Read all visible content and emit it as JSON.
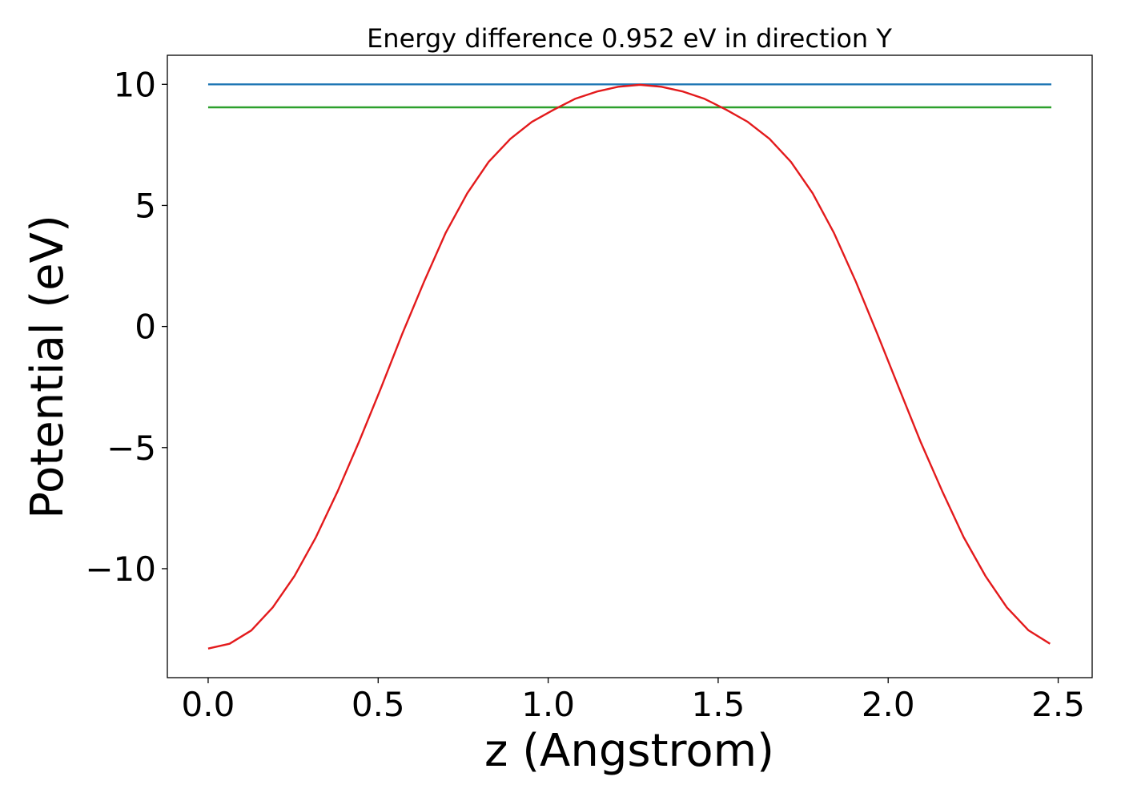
{
  "chart_data": {
    "type": "line",
    "title": "Energy difference 0.952 eV in direction Y",
    "xlabel": "z (Angstrom)",
    "ylabel": "Potential (eV)",
    "xlim": [
      -0.12,
      2.6
    ],
    "ylim": [
      -14.5,
      11.2
    ],
    "xticks": [
      0.0,
      0.5,
      1.0,
      1.5,
      2.0,
      2.5
    ],
    "xtick_labels": [
      "0.0",
      "0.5",
      "1.0",
      "1.5",
      "2.0",
      "2.5"
    ],
    "yticks": [
      10,
      5,
      0,
      -5,
      -10
    ],
    "ytick_labels": [
      "10",
      "5",
      "0",
      "−5",
      "−10"
    ],
    "grid": false,
    "series": [
      {
        "color": "#1f77b4",
        "x": [
          0.0,
          2.48
        ],
        "y": [
          10.0,
          10.0
        ]
      },
      {
        "color": "#2ca02c",
        "x": [
          0.0,
          2.48
        ],
        "y": [
          9.05,
          9.05
        ]
      },
      {
        "color": "#e31a1c",
        "x": [
          0.0,
          0.063,
          0.127,
          0.19,
          0.254,
          0.317,
          0.381,
          0.444,
          0.508,
          0.571,
          0.635,
          0.698,
          0.762,
          0.825,
          0.889,
          0.952,
          1.016,
          1.079,
          1.143,
          1.206,
          1.27,
          1.333,
          1.397,
          1.46,
          1.524,
          1.587,
          1.651,
          1.714,
          1.778,
          1.841,
          1.905,
          1.968,
          2.032,
          2.095,
          2.159,
          2.222,
          2.286,
          2.349,
          2.413,
          2.476
        ],
        "y": [
          -13.3,
          -13.1,
          -12.55,
          -11.6,
          -10.3,
          -8.7,
          -6.8,
          -4.75,
          -2.55,
          -0.3,
          1.85,
          3.85,
          5.5,
          6.8,
          7.75,
          8.45,
          8.95,
          9.4,
          9.7,
          9.9,
          9.98,
          9.9,
          9.7,
          9.4,
          8.95,
          8.45,
          7.75,
          6.8,
          5.5,
          3.85,
          1.85,
          -0.3,
          -2.55,
          -4.75,
          -6.8,
          -8.7,
          -10.3,
          -11.6,
          -12.55,
          -13.1
        ]
      }
    ]
  }
}
